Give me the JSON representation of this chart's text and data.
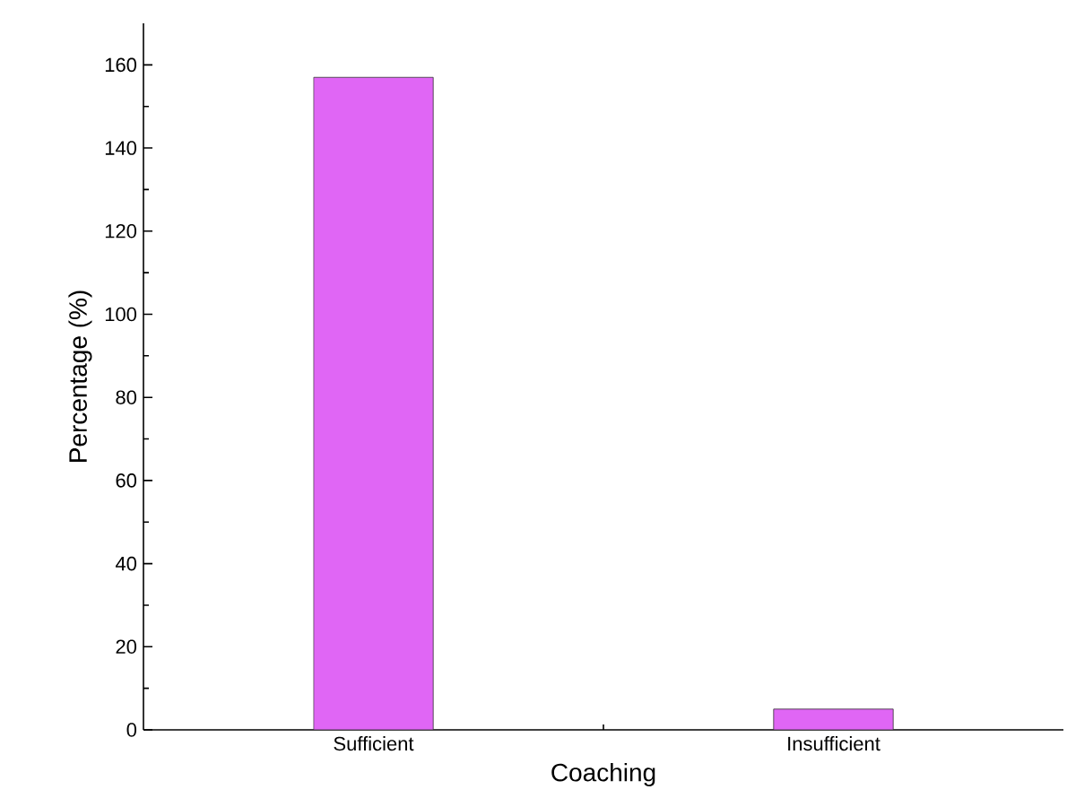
{
  "chart_data": {
    "type": "bar",
    "xlabel": "Coaching",
    "ylabel": "Percentage (%)",
    "categories": [
      "Sufficient",
      "Insufficient"
    ],
    "values": [
      157,
      5
    ],
    "color": "#e066f5",
    "ylim": [
      0,
      170
    ],
    "yticks": [
      0,
      20,
      40,
      60,
      80,
      100,
      120,
      140,
      160
    ],
    "grid": false
  }
}
